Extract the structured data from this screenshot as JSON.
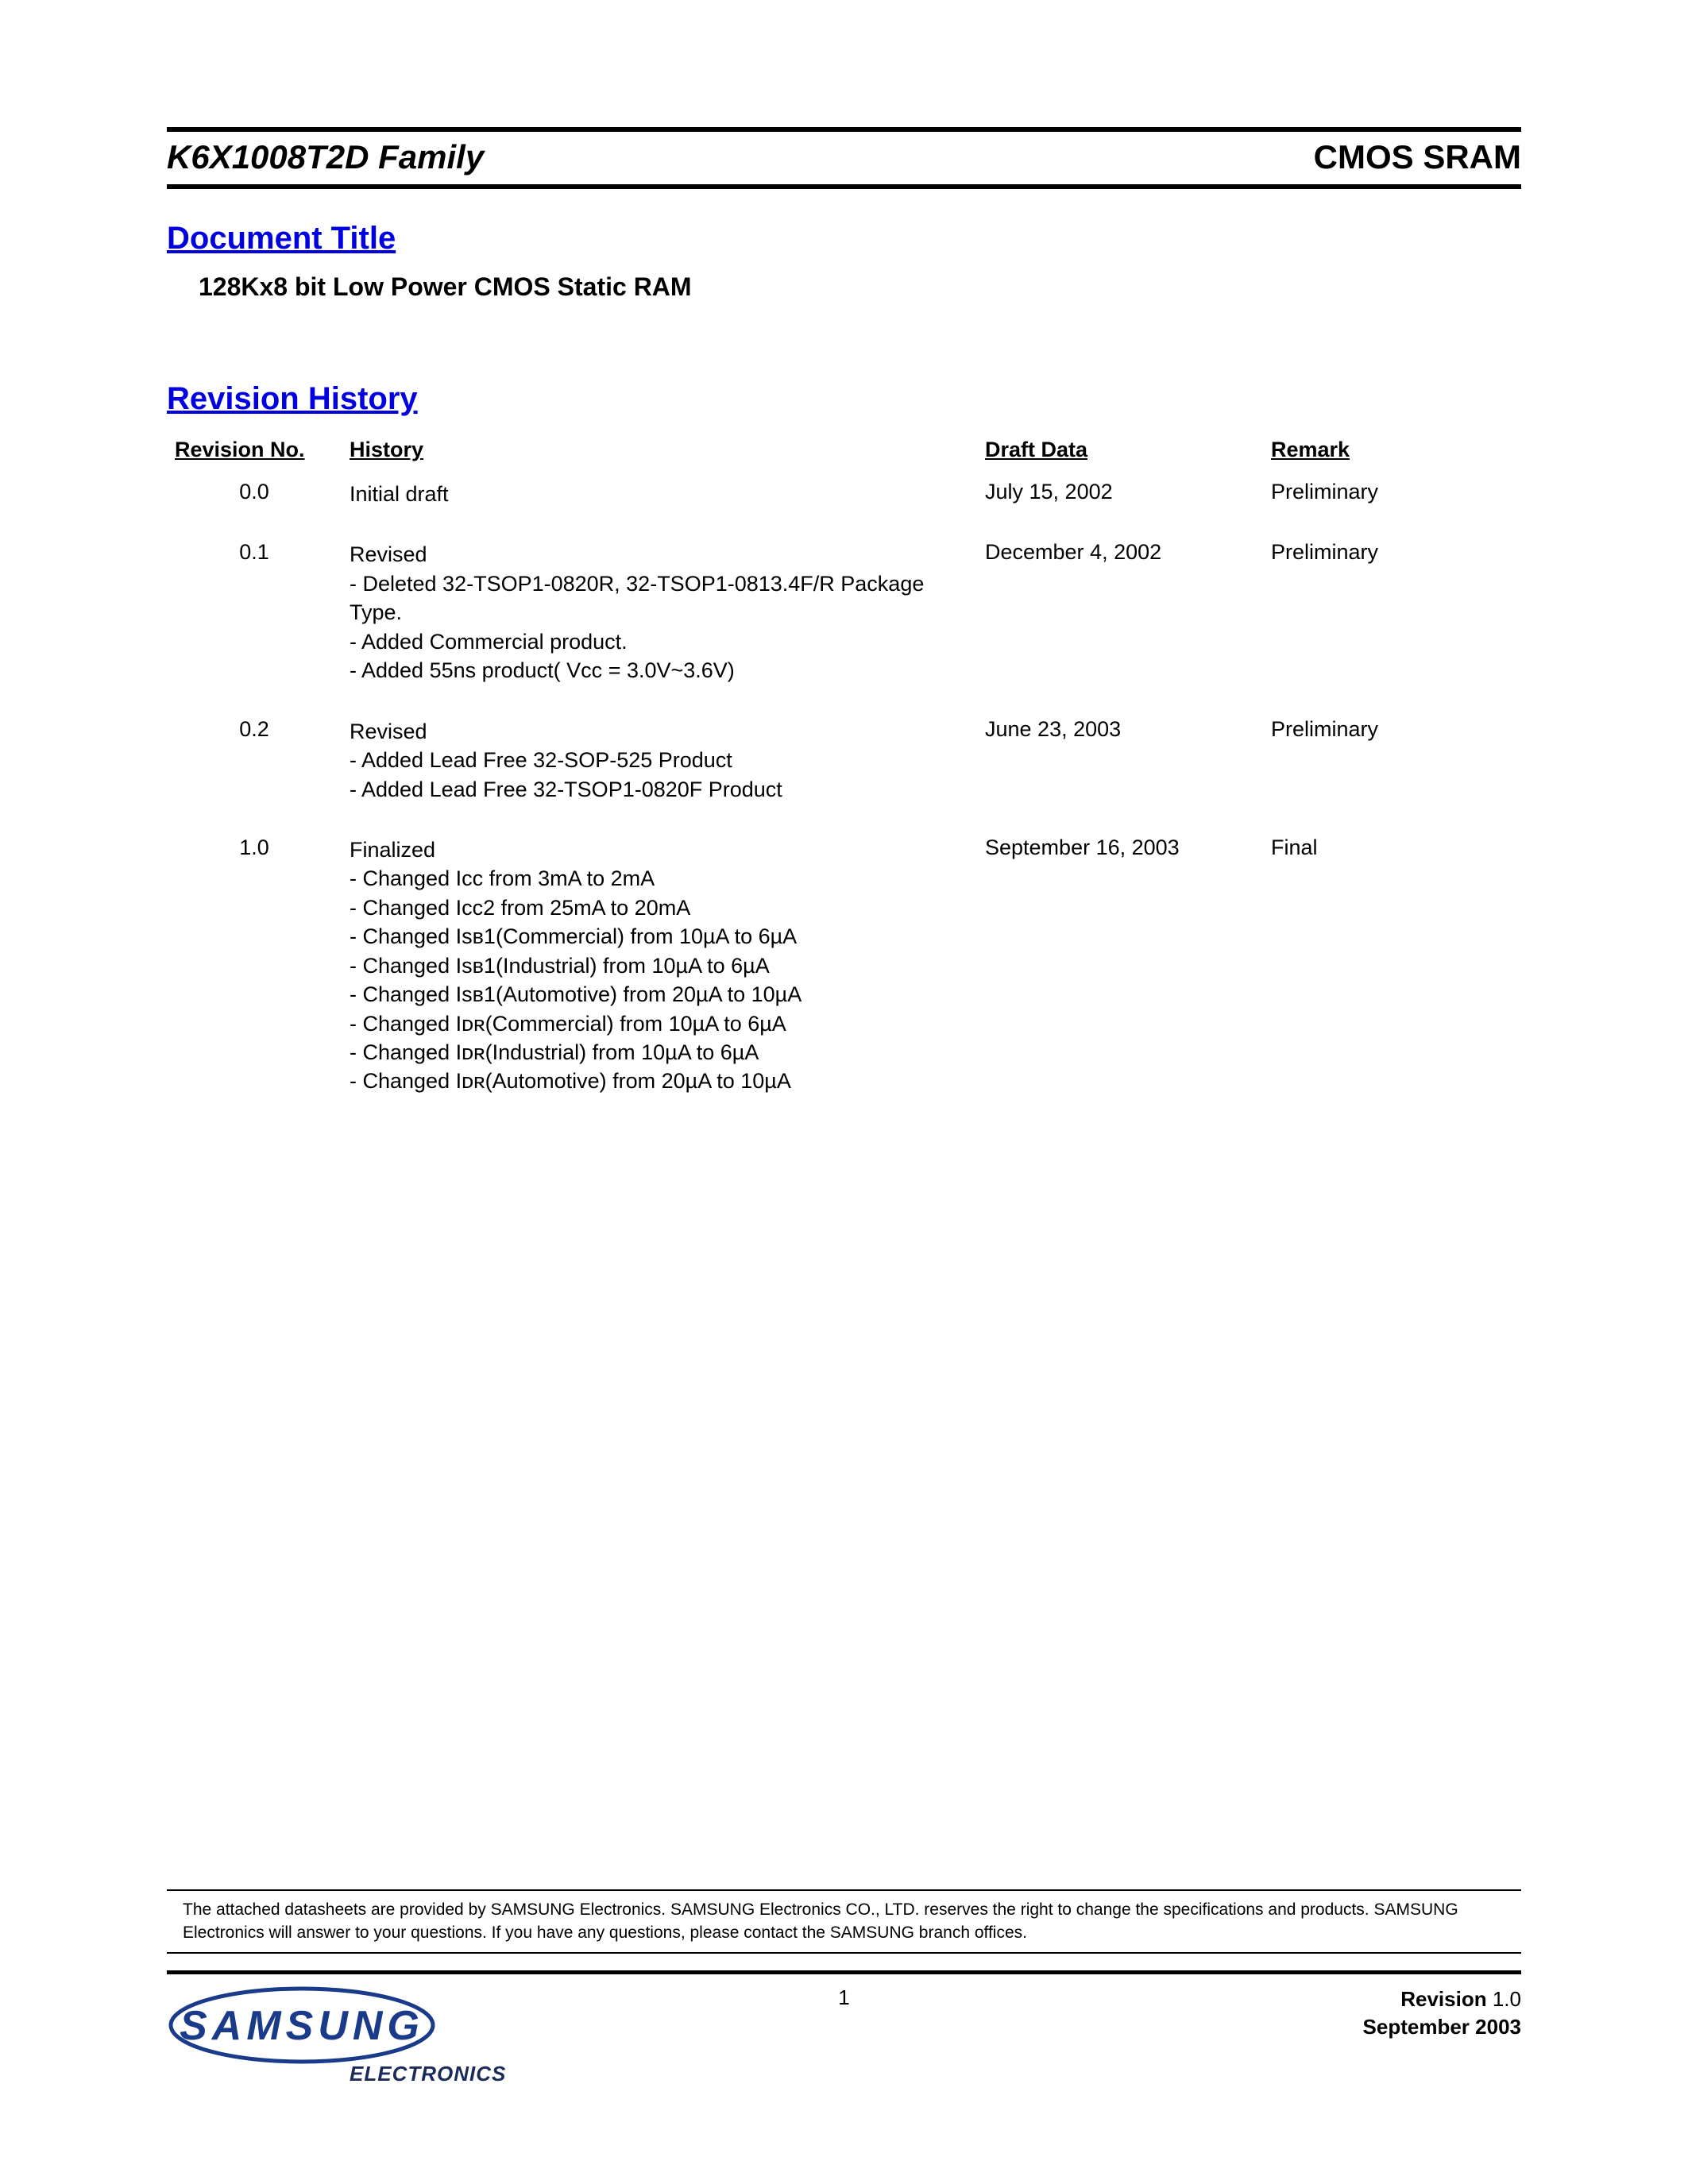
{
  "header": {
    "left": "K6X1008T2D Family",
    "right": "CMOS SRAM"
  },
  "document_title_heading": "Document Title",
  "subtitle": "128Kx8 bit Low Power CMOS Static RAM",
  "revision_history_heading": "Revision History",
  "table": {
    "columns": {
      "revno": "Revision No.",
      "history": "History",
      "date": "Draft Data",
      "remark": "Remark"
    },
    "rows": [
      {
        "revno": "0.0",
        "history_lines": [
          "Initial draft"
        ],
        "date": "July 15, 2002",
        "remark": "Preliminary"
      },
      {
        "revno": "0.1",
        "history_lines": [
          "Revised",
          "- Deleted 32-TSOP1-0820R, 32-TSOP1-0813.4F/R Package Type.",
          "- Added Commercial product.",
          "- Added 55ns product( Vcc = 3.0V~3.6V)"
        ],
        "date": "December 4, 2002",
        "remark": "Preliminary"
      },
      {
        "revno": "0.2",
        "history_lines": [
          "Revised",
          "- Added Lead Free 32-SOP-525 Product",
          "- Added Lead Free 32-TSOP1-0820F Product"
        ],
        "date": "June 23, 2003",
        "remark": "Preliminary"
      },
      {
        "revno": "1.0",
        "history_lines": [
          "Finalized",
          "- Changed Iᴄᴄ from 3mA to 2mA",
          "- Changed Iᴄᴄ2 from 25mA to 20mA",
          "- Changed Iѕв1(Commercial) from 10µA to 6µA",
          "- Changed Iѕв1(Industrial) from 10µA to 6µA",
          "- Changed Iѕв1(Automotive) from 20µA to 10µA",
          "- Changed Iᴅʀ(Commercial) from 10µA to 6µA",
          "- Changed Iᴅʀ(Industrial) from 10µA to 6µA",
          "- Changed Iᴅʀ(Automotive) from 20µA to 10µA"
        ],
        "date": "September 16, 2003",
        "remark": "Final"
      }
    ]
  },
  "disclaimer": "The attached datasheets are provided by SAMSUNG Electronics. SAMSUNG Electronics CO., LTD. reserves the right to change the specifications and products. SAMSUNG Electronics will answer to your questions. If you have any questions, please contact the SAMSUNG branch offices.",
  "footer": {
    "page_number": "1",
    "revision_label": "Revision",
    "revision_value": "1.0",
    "date": "September 2003",
    "logo_text": "SAMSUNG",
    "logo_sub": "ELECTRONICS"
  },
  "colors": {
    "heading_blue": "#0000e0",
    "black": "#000000",
    "logo_blue": "#1a3a8a",
    "logo_dark": "#1a2a5a"
  }
}
